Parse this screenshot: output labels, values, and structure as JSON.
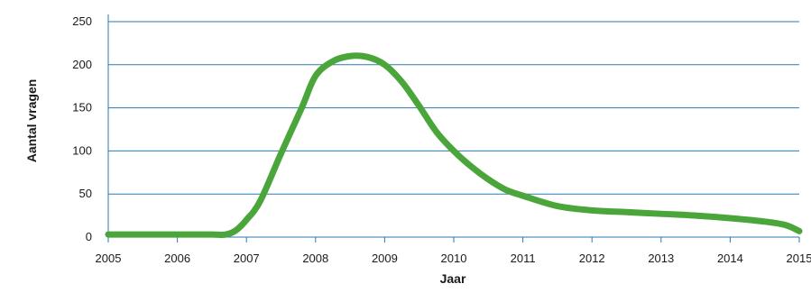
{
  "chart_data": {
    "type": "line",
    "xlabel": "Jaar",
    "ylabel": "Aantal vragen",
    "x_ticks": [
      "2005",
      "2006",
      "2007",
      "2008",
      "2009",
      "2010",
      "2011",
      "2012",
      "2013",
      "2014",
      "2015"
    ],
    "y_ticks": [
      "0",
      "50",
      "100",
      "150",
      "200",
      "250"
    ],
    "xlim": [
      2005,
      2015
    ],
    "ylim": [
      0,
      250
    ],
    "grid": "horizontal",
    "series": [
      {
        "color": "#4aa63a",
        "x": [
          2005,
          2005.5,
          2006,
          2006.5,
          2006.7,
          2006.85,
          2007,
          2007.2,
          2007.5,
          2007.8,
          2008,
          2008.25,
          2008.5,
          2008.75,
          2009,
          2009.25,
          2009.5,
          2009.75,
          2010,
          2010.25,
          2010.5,
          2010.75,
          2011,
          2011.5,
          2012,
          2012.5,
          2013,
          2013.5,
          2014,
          2014.5,
          2014.8,
          2015
        ],
        "y": [
          3,
          3,
          3,
          3,
          3,
          8,
          20,
          42,
          97,
          150,
          187,
          204,
          210,
          209,
          200,
          180,
          152,
          122,
          100,
          82,
          67,
          55,
          48,
          36,
          31,
          29,
          27,
          25,
          22,
          18,
          14,
          7
        ]
      }
    ]
  },
  "colors": {
    "line": "#4aa63a",
    "grid": "#2a7ab0",
    "text": "#1a1a1a"
  }
}
